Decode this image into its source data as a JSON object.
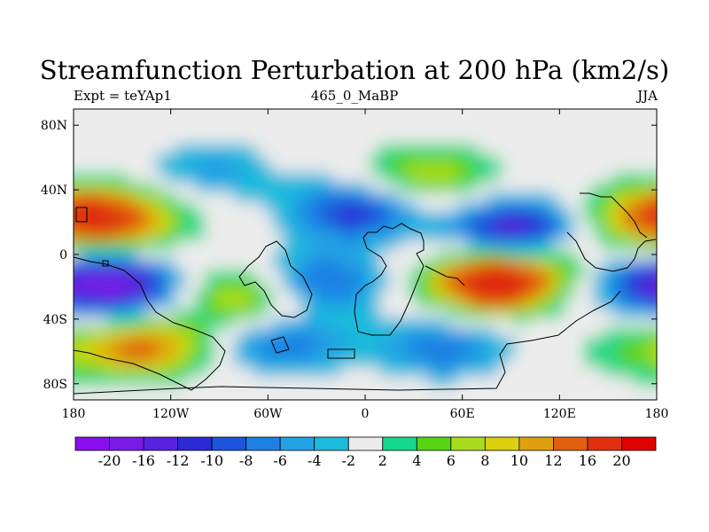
{
  "chart_data": {
    "type": "heatmap",
    "title": "Streamfunction Perturbation at 200 hPa (km2/s)",
    "left_label": "Expt = teYAp1",
    "center_label": "465_0_MaBP",
    "right_label": "JJA",
    "xlabel": "",
    "ylabel": "",
    "x_ticks": [
      {
        "lon": -180,
        "label": "180"
      },
      {
        "lon": -120,
        "label": "120W"
      },
      {
        "lon": -60,
        "label": "60W"
      },
      {
        "lon": 0,
        "label": "0"
      },
      {
        "lon": 60,
        "label": "60E"
      },
      {
        "lon": 120,
        "label": "120E"
      },
      {
        "lon": 180,
        "label": "180"
      }
    ],
    "y_ticks": [
      {
        "lat": 80,
        "label": "80N"
      },
      {
        "lat": 40,
        "label": "40N"
      },
      {
        "lat": 0,
        "label": "0"
      },
      {
        "lat": -40,
        "label": "40S"
      },
      {
        "lat": -80,
        "label": "80S"
      }
    ],
    "xlim": [
      -180,
      180
    ],
    "ylim": [
      -90,
      90
    ],
    "colorbar": {
      "labels": [
        "-20",
        "-16",
        "-12",
        "-10",
        "-8",
        "-6",
        "-4",
        "-2",
        "2",
        "4",
        "6",
        "8",
        "10",
        "12",
        "16",
        "20"
      ],
      "levels": [
        -20,
        -16,
        -12,
        -10,
        -8,
        -6,
        -4,
        -2,
        2,
        4,
        6,
        8,
        10,
        12,
        16,
        20
      ],
      "colors": [
        "#8a0ff0",
        "#7a1ae8",
        "#5a22e0",
        "#2c2ad6",
        "#1a55dc",
        "#1f80e4",
        "#22a2e4",
        "#1ebadc",
        "#ececec",
        "#16d88c",
        "#58d414",
        "#a8dc1c",
        "#dcd010",
        "#e0a010",
        "#e06010",
        "#e03010",
        "#e00000"
      ]
    },
    "features": [
      {
        "lon": 92,
        "lat": 16,
        "value": -14
      },
      {
        "lon": 80,
        "lat": -17,
        "value": 22
      },
      {
        "lon": -155,
        "lat": -19,
        "value": -17
      },
      {
        "lon": -136,
        "lat": -57,
        "value": 13
      },
      {
        "lon": -150,
        "lat": 22,
        "value": 12
      },
      {
        "lon": 178,
        "lat": 25,
        "value": 12
      },
      {
        "lon": -7,
        "lat": 27,
        "value": -11
      },
      {
        "lon": 40,
        "lat": 50,
        "value": 8
      },
      {
        "lon": -95,
        "lat": 52,
        "value": -5
      },
      {
        "lon": -30,
        "lat": -17,
        "value": -10
      },
      {
        "lon": -73,
        "lat": -25,
        "value": 10
      },
      {
        "lon": -50,
        "lat": -55,
        "value": -8
      },
      {
        "lon": 48,
        "lat": -57,
        "value": -8
      },
      {
        "lon": 155,
        "lat": -15,
        "value": -7
      },
      {
        "lon": 168,
        "lat": -60,
        "value": 4
      },
      {
        "lon": 130,
        "lat": -5,
        "value": 5
      }
    ]
  }
}
